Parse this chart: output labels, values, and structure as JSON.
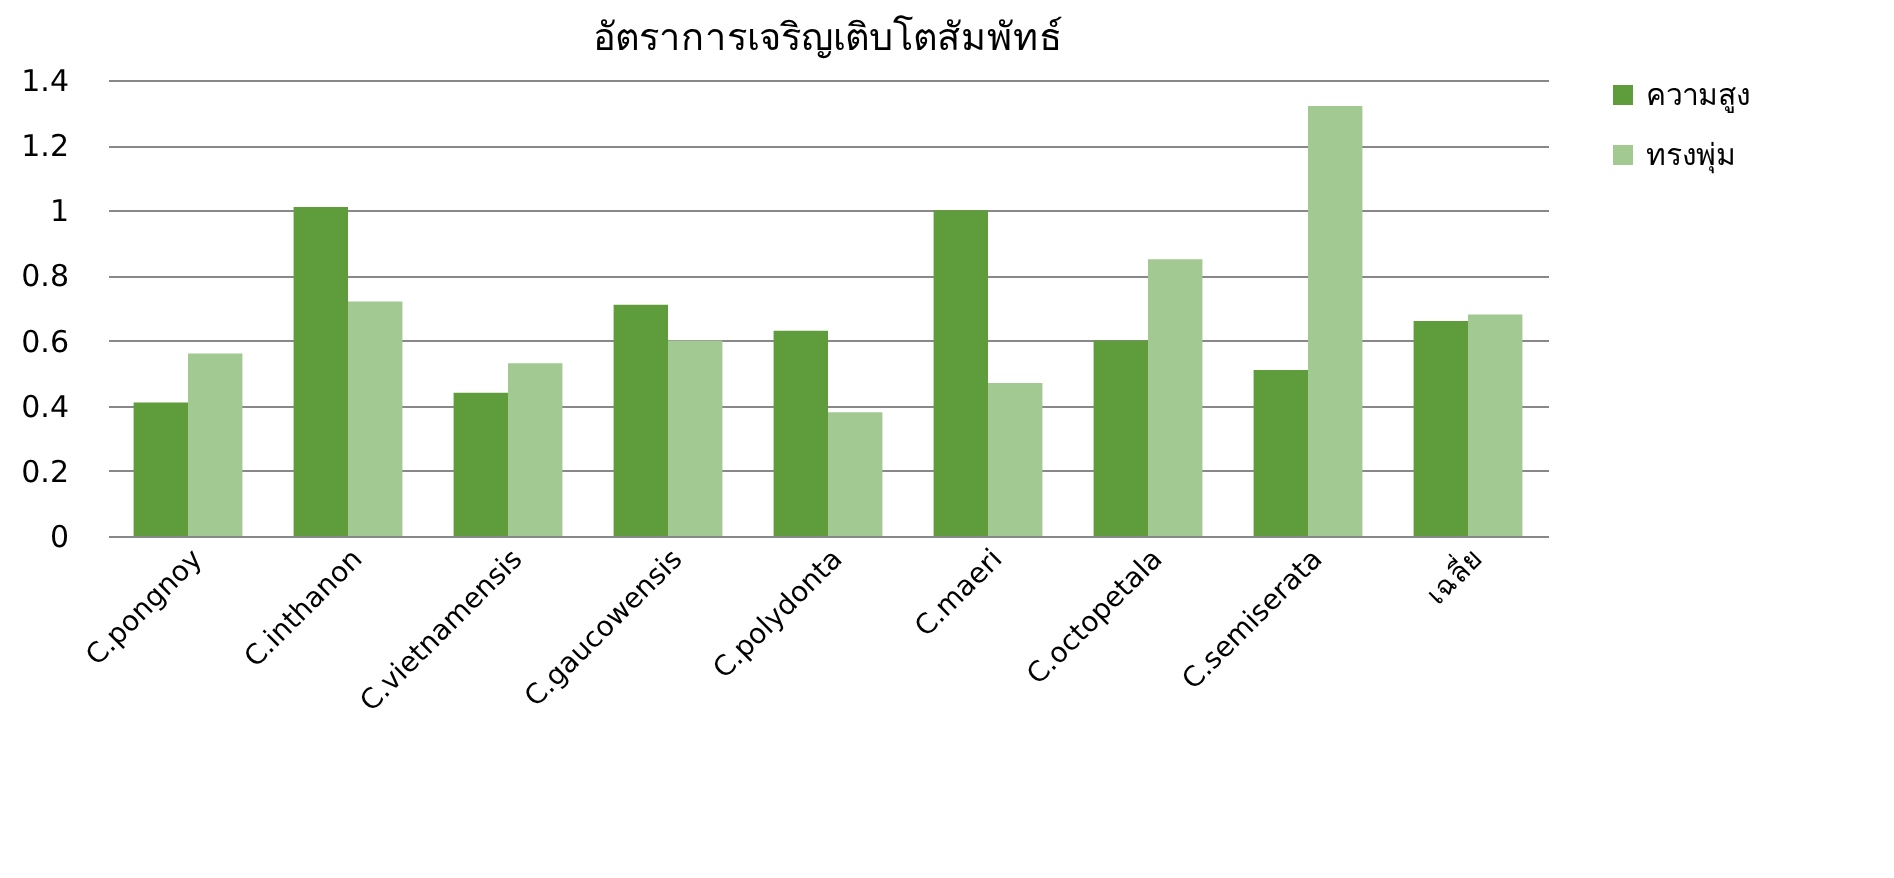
{
  "chart_data": {
    "type": "bar",
    "title": "อัตราการเจริญเติบโตสัมพัทธ์",
    "categories": [
      "C.pongnoy",
      "C.inthanon",
      "C.vietnamensis",
      "C.gaucowensis",
      "C.polydonta",
      "C.maeri",
      "C.octopetala",
      "C.semiserata",
      "เฉลี่ย"
    ],
    "series": [
      {
        "name": "ความสูง",
        "color": "#5f9c3b",
        "values": [
          0.41,
          1.01,
          0.44,
          0.71,
          0.63,
          1.0,
          0.6,
          0.51,
          0.66
        ]
      },
      {
        "name": "ทรงพุ่ม",
        "color": "#a3c993",
        "values": [
          0.56,
          0.72,
          0.53,
          0.6,
          0.38,
          0.47,
          0.85,
          1.32,
          0.68
        ]
      }
    ],
    "ylim": [
      0,
      1.4
    ],
    "yticks": [
      0,
      0.2,
      0.4,
      0.6,
      0.8,
      1,
      1.2,
      1.4
    ],
    "grid": "y",
    "legend": "right"
  }
}
